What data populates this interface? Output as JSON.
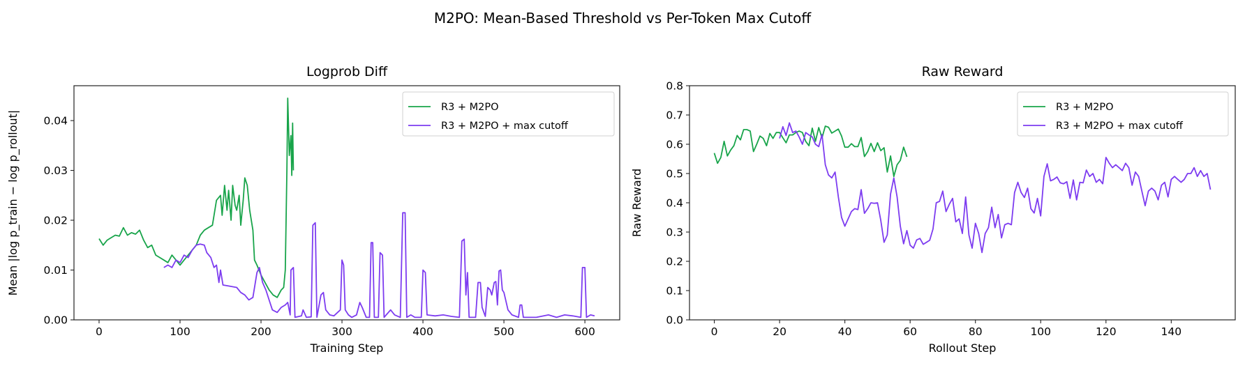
{
  "suptitle": "M2PO: Mean-Based Threshold vs Per-Token Max Cutoff",
  "colors": {
    "green": "#18a44a",
    "purple": "#7d3cf0"
  },
  "chart_data": [
    {
      "type": "line",
      "title": "Logprob Diff",
      "xlabel": "Training Step",
      "ylabel": "Mean |log p_train − log p_rollout|",
      "xlim": [
        -31,
        643
      ],
      "ylim": [
        0,
        0.047
      ],
      "xticks": [
        0,
        100,
        200,
        300,
        400,
        500,
        600
      ],
      "xtick_labels": [
        "0",
        "100",
        "200",
        "300",
        "400",
        "500",
        "600"
      ],
      "yticks": [
        0,
        0.01,
        0.02,
        0.03,
        0.04
      ],
      "ytick_labels": [
        "0.00",
        "0.01",
        "0.02",
        "0.03",
        "0.04"
      ],
      "legend": "top-right",
      "grid": false,
      "series": [
        {
          "name": "R3 + M2PO",
          "color": "#18a44a",
          "x": [
            0,
            5,
            10,
            15,
            20,
            25,
            30,
            35,
            40,
            45,
            50,
            55,
            60,
            65,
            70,
            75,
            80,
            85,
            90,
            95,
            100,
            105,
            110,
            115,
            120,
            125,
            130,
            135,
            140,
            145,
            150,
            152,
            155,
            158,
            160,
            163,
            165,
            168,
            170,
            173,
            175,
            178,
            180,
            183,
            186,
            190,
            192,
            195,
            200,
            205,
            210,
            215,
            220,
            225,
            228,
            230,
            232,
            233,
            235,
            237,
            238,
            239,
            240
          ],
          "y": [
            0.0163,
            0.015,
            0.016,
            0.0165,
            0.017,
            0.0168,
            0.0185,
            0.017,
            0.0175,
            0.0172,
            0.018,
            0.016,
            0.0145,
            0.015,
            0.013,
            0.0125,
            0.012,
            0.0115,
            0.013,
            0.012,
            0.011,
            0.012,
            0.013,
            0.014,
            0.015,
            0.017,
            0.018,
            0.0185,
            0.019,
            0.024,
            0.025,
            0.021,
            0.027,
            0.022,
            0.026,
            0.02,
            0.027,
            0.023,
            0.022,
            0.025,
            0.019,
            0.024,
            0.0285,
            0.027,
            0.022,
            0.018,
            0.012,
            0.011,
            0.009,
            0.0075,
            0.006,
            0.005,
            0.0045,
            0.006,
            0.0065,
            0.01,
            0.03,
            0.0445,
            0.033,
            0.037,
            0.029,
            0.0395,
            0.03
          ]
        },
        {
          "name": "R3 + M2PO + max cutoff",
          "color": "#7d3cf0",
          "x": [
            80,
            85,
            90,
            95,
            100,
            105,
            110,
            115,
            120,
            125,
            130,
            133,
            138,
            142,
            145,
            148,
            150,
            153,
            160,
            170,
            175,
            180,
            185,
            190,
            195,
            198,
            202,
            206,
            210,
            214,
            220,
            225,
            230,
            233,
            236,
            237,
            240,
            242,
            250,
            252,
            256,
            262,
            264,
            267,
            269,
            274,
            277,
            280,
            285,
            290,
            298,
            300,
            302,
            304,
            308,
            312,
            318,
            322,
            325,
            330,
            334,
            336,
            338,
            340,
            345,
            347,
            350,
            352,
            360,
            365,
            372,
            375,
            378,
            380,
            385,
            390,
            398,
            400,
            403,
            405,
            415,
            425,
            435,
            445,
            448,
            451,
            453,
            455,
            457,
            460,
            465,
            468,
            471,
            473,
            477,
            480,
            483,
            485,
            488,
            490,
            492,
            494,
            496,
            498,
            500,
            505,
            510,
            518,
            520,
            522,
            524,
            540,
            555,
            565,
            575,
            585,
            595,
            597,
            600,
            602,
            607,
            612
          ],
          "y": [
            0.0105,
            0.011,
            0.0105,
            0.012,
            0.0115,
            0.013,
            0.0125,
            0.014,
            0.015,
            0.0152,
            0.015,
            0.0135,
            0.0125,
            0.0105,
            0.011,
            0.0075,
            0.01,
            0.007,
            0.0068,
            0.0065,
            0.0055,
            0.005,
            0.004,
            0.0045,
            0.0095,
            0.0105,
            0.0075,
            0.006,
            0.004,
            0.002,
            0.0015,
            0.0025,
            0.003,
            0.0035,
            0.001,
            0.01,
            0.0105,
            0.0005,
            0.0008,
            0.002,
            0.0005,
            0.0006,
            0.019,
            0.0195,
            0.0005,
            0.005,
            0.0055,
            0.002,
            0.001,
            0.0008,
            0.002,
            0.012,
            0.011,
            0.002,
            0.001,
            0.0005,
            0.001,
            0.0035,
            0.0025,
            0.0005,
            0.0005,
            0.0155,
            0.0155,
            0.0005,
            0.0005,
            0.0135,
            0.013,
            0.0005,
            0.002,
            0.001,
            0.0005,
            0.0215,
            0.0215,
            0.0005,
            0.001,
            0.0005,
            0.0005,
            0.01,
            0.0095,
            0.001,
            0.0008,
            0.001,
            0.0007,
            0.0005,
            0.0158,
            0.0162,
            0.005,
            0.0095,
            0.0005,
            0.0005,
            0.0005,
            0.0075,
            0.0075,
            0.0025,
            0.0007,
            0.0065,
            0.006,
            0.005,
            0.0075,
            0.0077,
            0.003,
            0.0098,
            0.01,
            0.006,
            0.0055,
            0.002,
            0.001,
            0.0005,
            0.003,
            0.003,
            0.0005,
            0.0005,
            0.001,
            0.0005,
            0.001,
            0.0008,
            0.0005,
            0.0105,
            0.0105,
            0.0005,
            0.001,
            0.0008
          ]
        }
      ]
    },
    {
      "type": "line",
      "title": "Raw Reward",
      "xlabel": "Rollout Step",
      "ylabel": "Raw Reward",
      "xlim": [
        -7.6,
        159.6
      ],
      "ylim": [
        0,
        0.8
      ],
      "xticks": [
        0,
        20,
        40,
        60,
        80,
        100,
        120,
        140
      ],
      "xtick_labels": [
        "0",
        "20",
        "40",
        "60",
        "80",
        "100",
        "120",
        "140"
      ],
      "yticks": [
        0,
        0.1,
        0.2,
        0.3,
        0.4,
        0.5,
        0.6,
        0.7,
        0.8
      ],
      "ytick_labels": [
        "0.0",
        "0.1",
        "0.2",
        "0.3",
        "0.4",
        "0.5",
        "0.6",
        "0.7",
        "0.8"
      ],
      "legend": "top-right",
      "grid": false,
      "series": [
        {
          "name": "R3 + M2PO",
          "color": "#18a44a",
          "x": [
            0,
            1,
            2,
            3,
            4,
            5,
            6,
            7,
            8,
            9,
            10,
            11,
            12,
            13,
            14,
            15,
            16,
            17,
            18,
            19,
            20,
            21,
            22,
            23,
            24,
            25,
            26,
            27,
            28,
            29,
            30,
            31,
            32,
            33,
            34,
            35,
            36,
            37,
            38,
            39,
            40,
            41,
            42,
            43,
            44,
            45,
            46,
            47,
            48,
            49,
            50,
            51,
            52,
            53,
            54,
            55,
            56,
            57,
            58,
            59
          ],
          "y": [
            0.57,
            0.535,
            0.555,
            0.61,
            0.56,
            0.58,
            0.595,
            0.63,
            0.615,
            0.65,
            0.65,
            0.645,
            0.575,
            0.6,
            0.628,
            0.62,
            0.595,
            0.637,
            0.62,
            0.64,
            0.64,
            0.622,
            0.605,
            0.632,
            0.632,
            0.64,
            0.645,
            0.64,
            0.61,
            0.595,
            0.655,
            0.61,
            0.657,
            0.622,
            0.662,
            0.658,
            0.638,
            0.645,
            0.652,
            0.628,
            0.59,
            0.59,
            0.602,
            0.592,
            0.592,
            0.623,
            0.558,
            0.575,
            0.603,
            0.575,
            0.605,
            0.578,
            0.588,
            0.505,
            0.56,
            0.49,
            0.53,
            0.545,
            0.59,
            0.557
          ]
        },
        {
          "name": "R3 + M2PO + max cutoff",
          "color": "#7d3cf0",
          "x": [
            20,
            21,
            22,
            23,
            24,
            25,
            26,
            27,
            28,
            29,
            30,
            31,
            32,
            33,
            34,
            35,
            36,
            37,
            38,
            39,
            40,
            41,
            42,
            43,
            44,
            45,
            46,
            47,
            48,
            49,
            50,
            51,
            52,
            53,
            54,
            55,
            56,
            57,
            58,
            59,
            60,
            61,
            62,
            63,
            64,
            65,
            66,
            67,
            68,
            69,
            70,
            71,
            72,
            73,
            74,
            75,
            76,
            77,
            78,
            79,
            80,
            81,
            82,
            83,
            84,
            85,
            86,
            87,
            88,
            89,
            90,
            91,
            92,
            93,
            94,
            95,
            96,
            97,
            98,
            99,
            100,
            101,
            102,
            103,
            104,
            105,
            106,
            107,
            108,
            109,
            110,
            111,
            112,
            113,
            114,
            115,
            116,
            117,
            118,
            119,
            120,
            121,
            122,
            123,
            124,
            125,
            126,
            127,
            128,
            129,
            130,
            131,
            132,
            133,
            134,
            135,
            136,
            137,
            138,
            139,
            140,
            141,
            142,
            143,
            144,
            145,
            146,
            147,
            148,
            149,
            150,
            151,
            152
          ],
          "y": [
            0.62,
            0.66,
            0.63,
            0.673,
            0.64,
            0.645,
            0.625,
            0.6,
            0.64,
            0.632,
            0.625,
            0.6,
            0.592,
            0.633,
            0.53,
            0.495,
            0.485,
            0.505,
            0.42,
            0.35,
            0.32,
            0.345,
            0.37,
            0.38,
            0.377,
            0.445,
            0.364,
            0.38,
            0.4,
            0.398,
            0.4,
            0.34,
            0.265,
            0.29,
            0.43,
            0.485,
            0.42,
            0.32,
            0.26,
            0.305,
            0.255,
            0.245,
            0.273,
            0.278,
            0.258,
            0.265,
            0.272,
            0.31,
            0.4,
            0.405,
            0.44,
            0.37,
            0.395,
            0.415,
            0.335,
            0.345,
            0.295,
            0.42,
            0.29,
            0.245,
            0.33,
            0.295,
            0.23,
            0.295,
            0.315,
            0.385,
            0.315,
            0.36,
            0.28,
            0.325,
            0.33,
            0.325,
            0.435,
            0.47,
            0.435,
            0.418,
            0.45,
            0.38,
            0.365,
            0.415,
            0.355,
            0.49,
            0.533,
            0.475,
            0.48,
            0.488,
            0.468,
            0.465,
            0.472,
            0.415,
            0.478,
            0.41,
            0.47,
            0.468,
            0.512,
            0.49,
            0.5,
            0.47,
            0.48,
            0.465,
            0.555,
            0.535,
            0.52,
            0.53,
            0.52,
            0.51,
            0.535,
            0.52,
            0.46,
            0.505,
            0.49,
            0.44,
            0.39,
            0.44,
            0.45,
            0.44,
            0.41,
            0.46,
            0.47,
            0.42,
            0.48,
            0.49,
            0.48,
            0.47,
            0.48,
            0.5,
            0.5,
            0.52,
            0.49,
            0.51,
            0.49,
            0.5,
            0.445
          ]
        }
      ]
    }
  ]
}
